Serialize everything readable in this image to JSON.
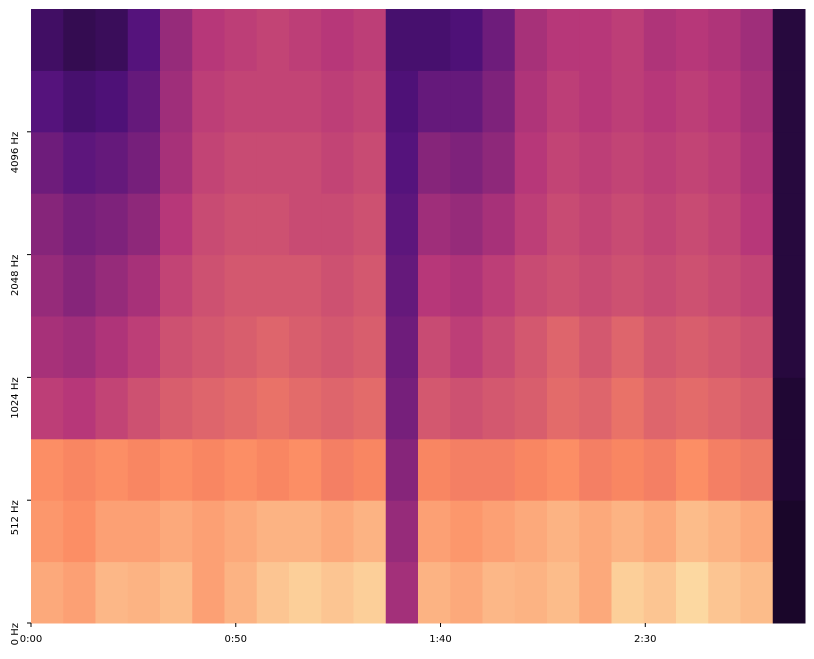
{
  "chart_data": {
    "type": "spectrogram",
    "colormap": "magma",
    "xlim": [
      0,
      189
    ],
    "xticks": [
      {
        "value": 0,
        "label": "0:00"
      },
      {
        "value": 50,
        "label": "0:50"
      },
      {
        "value": 100,
        "label": "1:40"
      },
      {
        "value": 150,
        "label": "2:30"
      }
    ],
    "ylim": [
      0,
      8192
    ],
    "yscale": "symlog",
    "yticks": [
      {
        "value": 0,
        "label": "0 Hz"
      },
      {
        "value": 512,
        "label": "512 Hz"
      },
      {
        "value": 1024,
        "label": "1024 Hz"
      },
      {
        "value": 2048,
        "label": "2048 Hz"
      },
      {
        "value": 4096,
        "label": "4096 Hz"
      }
    ],
    "z": [
      [
        0.82,
        0.8,
        0.85,
        0.84,
        0.86,
        0.8,
        0.84,
        0.88,
        0.9,
        0.88,
        0.9,
        0.45,
        0.84,
        0.82,
        0.85,
        0.84,
        0.86,
        0.82,
        0.9,
        0.88,
        0.92,
        0.88,
        0.86,
        0.08
      ],
      [
        0.78,
        0.76,
        0.8,
        0.8,
        0.82,
        0.8,
        0.82,
        0.84,
        0.84,
        0.82,
        0.84,
        0.42,
        0.8,
        0.78,
        0.8,
        0.82,
        0.84,
        0.82,
        0.84,
        0.82,
        0.86,
        0.84,
        0.82,
        0.08
      ],
      [
        0.76,
        0.74,
        0.76,
        0.74,
        0.76,
        0.74,
        0.76,
        0.74,
        0.76,
        0.72,
        0.74,
        0.38,
        0.74,
        0.72,
        0.72,
        0.74,
        0.76,
        0.72,
        0.74,
        0.72,
        0.76,
        0.72,
        0.7,
        0.1
      ],
      [
        0.52,
        0.5,
        0.54,
        0.58,
        0.62,
        0.64,
        0.66,
        0.68,
        0.66,
        0.64,
        0.66,
        0.34,
        0.6,
        0.58,
        0.6,
        0.62,
        0.66,
        0.64,
        0.68,
        0.64,
        0.66,
        0.64,
        0.62,
        0.1
      ],
      [
        0.46,
        0.44,
        0.48,
        0.52,
        0.58,
        0.6,
        0.62,
        0.64,
        0.62,
        0.6,
        0.62,
        0.32,
        0.56,
        0.52,
        0.56,
        0.6,
        0.64,
        0.6,
        0.64,
        0.6,
        0.62,
        0.6,
        0.58,
        0.12
      ],
      [
        0.42,
        0.38,
        0.42,
        0.46,
        0.54,
        0.58,
        0.6,
        0.6,
        0.6,
        0.58,
        0.6,
        0.3,
        0.5,
        0.48,
        0.52,
        0.56,
        0.58,
        0.56,
        0.58,
        0.56,
        0.58,
        0.56,
        0.54,
        0.12
      ],
      [
        0.38,
        0.34,
        0.36,
        0.4,
        0.5,
        0.56,
        0.58,
        0.58,
        0.56,
        0.56,
        0.58,
        0.28,
        0.44,
        0.42,
        0.46,
        0.52,
        0.56,
        0.54,
        0.56,
        0.54,
        0.56,
        0.54,
        0.5,
        0.12
      ],
      [
        0.32,
        0.28,
        0.3,
        0.34,
        0.46,
        0.54,
        0.56,
        0.56,
        0.56,
        0.54,
        0.56,
        0.26,
        0.38,
        0.36,
        0.4,
        0.5,
        0.54,
        0.52,
        0.54,
        0.52,
        0.54,
        0.52,
        0.48,
        0.12
      ],
      [
        0.26,
        0.22,
        0.24,
        0.3,
        0.44,
        0.52,
        0.54,
        0.54,
        0.54,
        0.52,
        0.54,
        0.24,
        0.3,
        0.3,
        0.36,
        0.48,
        0.52,
        0.5,
        0.52,
        0.5,
        0.52,
        0.5,
        0.46,
        0.12
      ],
      [
        0.2,
        0.16,
        0.18,
        0.26,
        0.42,
        0.5,
        0.52,
        0.54,
        0.52,
        0.5,
        0.52,
        0.22,
        0.22,
        0.24,
        0.32,
        0.46,
        0.5,
        0.5,
        0.52,
        0.48,
        0.5,
        0.48,
        0.44,
        0.12
      ]
    ]
  }
}
